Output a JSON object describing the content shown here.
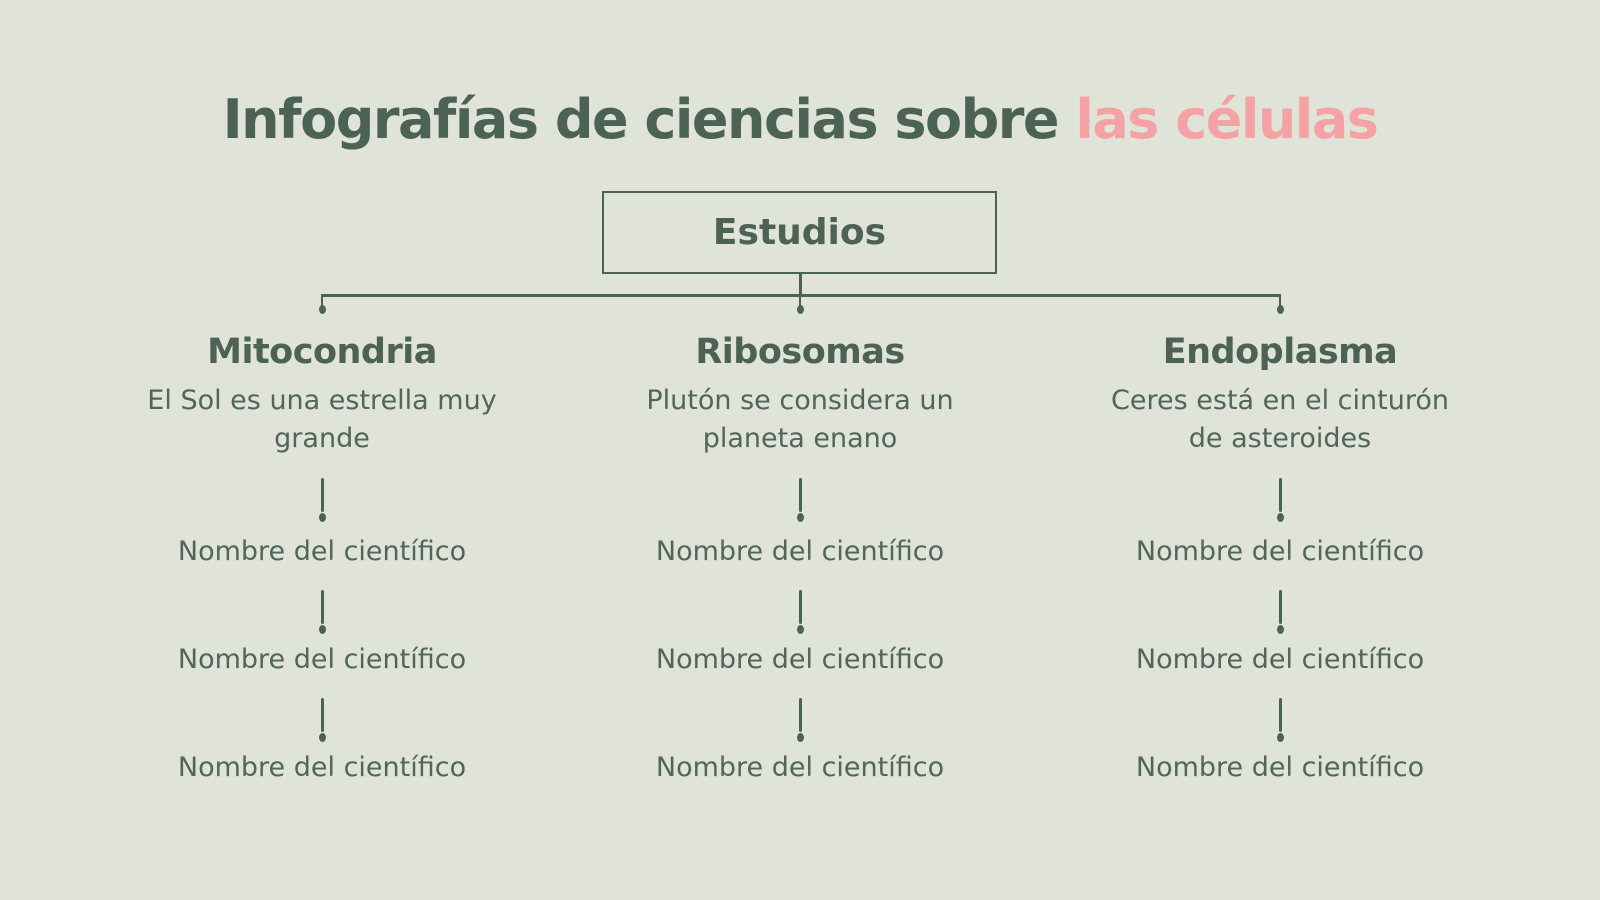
{
  "slide": {
    "title": {
      "main": "Infografías de ciencias sobre ",
      "accent": "las células"
    },
    "root": {
      "label": "Estudios"
    },
    "branches": [
      {
        "title": "Mitocondria",
        "description": "El Sol es una estrella muy grande",
        "scientists": [
          "Nombre del científico",
          "Nombre del científico",
          "Nombre del científico"
        ]
      },
      {
        "title": "Ribosomas",
        "description": "Plutón se considera un planeta enano",
        "scientists": [
          "Nombre del científico",
          "Nombre del científico",
          "Nombre del científico"
        ]
      },
      {
        "title": "Endoplasma",
        "description": "Ceres está en el cinturón de asteroides",
        "scientists": [
          "Nombre del científico",
          "Nombre del científico",
          "Nombre del científico"
        ]
      }
    ],
    "colors": {
      "background": "#e0e3d8",
      "text_green": "#4c6254",
      "text_green_soft": "#50665a",
      "accent_pink": "#f4a2a3"
    }
  }
}
